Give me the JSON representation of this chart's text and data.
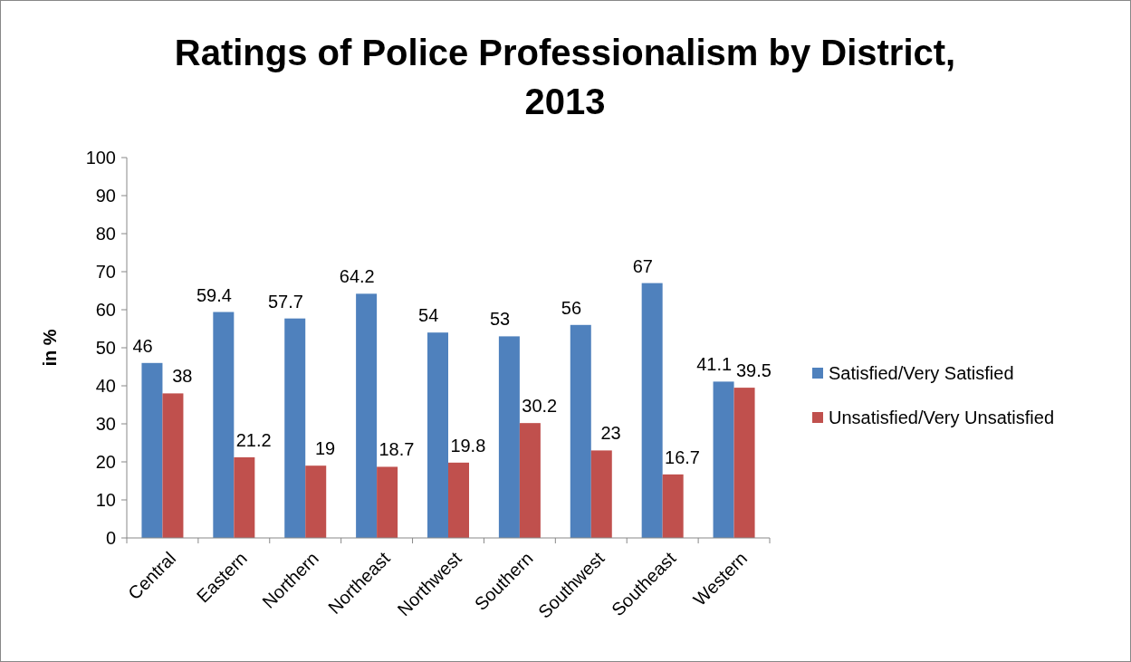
{
  "chart_data": {
    "type": "bar",
    "title": "Ratings of Police Professionalism by District, 2013",
    "ylabel": "in %",
    "categories": [
      "Central",
      "Eastern",
      "Northern",
      "Northeast",
      "Northwest",
      "Southern",
      "Southwest",
      "Southeast",
      "Western"
    ],
    "series": [
      {
        "name": "Satisfied/Very Satisfied",
        "color": "#4f81bd",
        "values": [
          46,
          59.4,
          57.7,
          64.2,
          54,
          53,
          56,
          67,
          41.1
        ]
      },
      {
        "name": "Unsatisfied/Very Unsatisfied",
        "color": "#c0504d",
        "values": [
          38,
          21.2,
          19,
          18.7,
          19.8,
          30.2,
          23,
          16.7,
          39.5
        ]
      }
    ],
    "ylim": [
      0,
      100
    ],
    "yticks": [
      0,
      10,
      20,
      30,
      40,
      50,
      60,
      70,
      80,
      90,
      100
    ],
    "data_labels": true,
    "legend": "right",
    "grid": false
  }
}
